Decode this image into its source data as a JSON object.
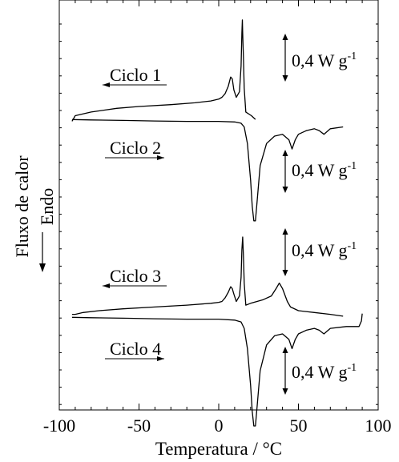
{
  "chart_data": {
    "type": "line",
    "xlabel": "Temperatura / °C",
    "ylabel": "Fluxo de calor",
    "xlim": [
      -100,
      100
    ],
    "x_ticks": [
      "-100",
      "-50",
      "0",
      "50",
      "100"
    ],
    "endo_label": "Endo",
    "scale_bar_label": "0,4 W g",
    "scale_bar_exp": "-1",
    "grid": false,
    "series": [
      {
        "name": "Ciclo 1",
        "direction": "cooling",
        "x": [
          23,
          20.5,
          17,
          16,
          15.5,
          15,
          14.8,
          14.5,
          14,
          13,
          11,
          9.5,
          8.5,
          7.5,
          6,
          4,
          2,
          0,
          -5,
          -15,
          -30,
          -50,
          -64,
          -80,
          -90,
          -92
        ],
        "y": [
          -0.07,
          -0.05,
          -0.03,
          0.1,
          0.27,
          0.4,
          0.47,
          0.4,
          0.22,
          0.08,
          0.05,
          0.09,
          0.15,
          0.16,
          0.11,
          0.07,
          0.05,
          0.04,
          0.03,
          0.02,
          0.01,
          0.0,
          -0.01,
          -0.03,
          -0.05,
          -0.08
        ]
      },
      {
        "name": "Ciclo 2",
        "direction": "heating",
        "x": [
          -92,
          -80,
          -60,
          -40,
          -20,
          0,
          10,
          14,
          16,
          18,
          20,
          21,
          22,
          23,
          24,
          26,
          30,
          35,
          40,
          44,
          46,
          48,
          50,
          55,
          60,
          63,
          66,
          70,
          78
        ],
        "y": [
          -0.01,
          -0.012,
          -0.015,
          -0.018,
          -0.02,
          -0.02,
          -0.023,
          -0.03,
          -0.05,
          -0.14,
          -0.34,
          -0.48,
          -0.56,
          -0.56,
          -0.46,
          -0.26,
          -0.14,
          -0.1,
          -0.09,
          -0.12,
          -0.17,
          -0.12,
          -0.09,
          -0.07,
          -0.06,
          -0.07,
          -0.09,
          -0.06,
          -0.05
        ]
      },
      {
        "name": "Ciclo 3",
        "direction": "cooling",
        "x": [
          78,
          70,
          60,
          50,
          45,
          43,
          40,
          38,
          36,
          33,
          28,
          24,
          20,
          17,
          16,
          15.5,
          15,
          14.5,
          14,
          13,
          11,
          9.5,
          8.5,
          7.5,
          6,
          4,
          2,
          0,
          -5,
          -20,
          -40,
          -60,
          -75,
          -85,
          -90,
          -92
        ],
        "y": [
          -0.03,
          -0.02,
          -0.01,
          0.0,
          0.02,
          0.05,
          0.12,
          0.15,
          0.12,
          0.08,
          0.06,
          0.05,
          0.04,
          0.03,
          0.15,
          0.3,
          0.4,
          0.33,
          0.18,
          0.08,
          0.05,
          0.09,
          0.12,
          0.13,
          0.1,
          0.07,
          0.05,
          0.045,
          0.04,
          0.03,
          0.02,
          0.01,
          0.0,
          -0.01,
          -0.02,
          -0.02
        ]
      },
      {
        "name": "Ciclo 4",
        "direction": "heating",
        "x": [
          -92,
          -80,
          -60,
          -40,
          -20,
          0,
          10,
          14,
          16,
          18,
          20,
          21,
          22,
          23,
          24,
          26,
          30,
          35,
          40,
          44,
          46,
          48,
          50,
          55,
          60,
          63,
          66,
          70,
          80,
          88,
          89.5,
          90
        ],
        "y": [
          -0.01,
          -0.012,
          -0.015,
          -0.018,
          -0.02,
          -0.02,
          -0.025,
          -0.035,
          -0.07,
          -0.18,
          -0.38,
          -0.52,
          -0.6,
          -0.6,
          -0.5,
          -0.3,
          -0.16,
          -0.11,
          -0.1,
          -0.13,
          -0.18,
          -0.13,
          -0.1,
          -0.08,
          -0.07,
          -0.08,
          -0.1,
          -0.07,
          -0.06,
          -0.06,
          -0.03,
          0.01
        ]
      }
    ]
  }
}
